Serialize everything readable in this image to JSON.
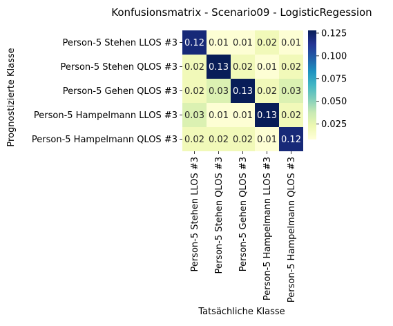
{
  "chart_data": {
    "type": "heatmap",
    "title": "Konfusionsmatrix - Scenario09 - LogisticRegession",
    "xlabel": "Tatsächliche Klasse",
    "ylabel": "Prognostizierte Klasse",
    "x_categories": [
      "Person-5 Stehen LLOS #3",
      "Person-5 Stehen QLOS #3",
      "Person-5 Gehen QLOS #3",
      "Person-5 Hampelmann LLOS #3",
      "Person-5 Hampelmann QLOS #3"
    ],
    "y_categories": [
      "Person-5 Stehen LLOS #3",
      "Person-5 Stehen QLOS #3",
      "Person-5 Gehen QLOS #3",
      "Person-5 Hampelmann LLOS #3",
      "Person-5 Hampelmann QLOS #3"
    ],
    "values": [
      [
        0.12,
        0.01,
        0.01,
        0.02,
        0.01
      ],
      [
        0.02,
        0.13,
        0.02,
        0.01,
        0.02
      ],
      [
        0.02,
        0.03,
        0.13,
        0.02,
        0.03
      ],
      [
        0.03,
        0.01,
        0.01,
        0.13,
        0.02
      ],
      [
        0.02,
        0.02,
        0.02,
        0.01,
        0.12
      ]
    ],
    "cell_labels": [
      [
        "0.12",
        "0.01",
        "0.01",
        "0.02",
        "0.01"
      ],
      [
        "0.02",
        "0.13",
        "0.02",
        "0.01",
        "0.02"
      ],
      [
        "0.02",
        "0.03",
        "0.13",
        "0.02",
        "0.03"
      ],
      [
        "0.03",
        "0.01",
        "0.01",
        "0.13",
        "0.02"
      ],
      [
        "0.02",
        "0.02",
        "0.02",
        "0.01",
        "0.12"
      ]
    ],
    "colormap": "YlGnBu",
    "colorbar": {
      "range": [
        0.008,
        0.128
      ],
      "ticks": [
        0.025,
        0.05,
        0.075,
        0.1,
        0.125
      ],
      "tick_labels": [
        "0.025",
        "0.050",
        "0.075",
        "0.100",
        "0.125"
      ]
    }
  }
}
